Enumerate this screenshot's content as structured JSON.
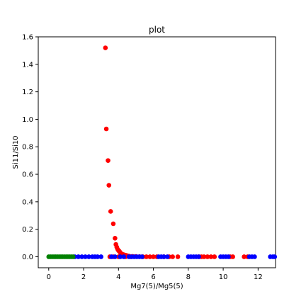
{
  "chart_data": {
    "type": "scatter",
    "title": "plot",
    "xlabel": "Mg7(5)/Mg5(5)",
    "ylabel": "Si11/Si10",
    "xlim": [
      -0.6,
      13.0
    ],
    "ylim": [
      -0.08,
      1.6
    ],
    "x_ticks": [
      0,
      2,
      4,
      6,
      8,
      10,
      12
    ],
    "y_ticks": [
      0.0,
      0.2,
      0.4,
      0.6,
      0.8,
      1.0,
      1.2,
      1.4,
      1.6
    ],
    "x_tick_labels": [
      "0",
      "2",
      "4",
      "6",
      "8",
      "10",
      "12"
    ],
    "y_tick_labels": [
      "0.0",
      "0.2",
      "0.4",
      "0.6",
      "0.8",
      "1.0",
      "1.2",
      "1.4",
      "1.6"
    ],
    "grid": false,
    "series": [
      {
        "color": "#ff0000",
        "points": [
          [
            3.25,
            1.52
          ],
          [
            3.3,
            0.93
          ],
          [
            3.4,
            0.7
          ],
          [
            3.45,
            0.52
          ],
          [
            3.55,
            0.33
          ],
          [
            3.7,
            0.24
          ],
          [
            3.8,
            0.135
          ],
          [
            3.85,
            0.09
          ],
          [
            3.9,
            0.07
          ],
          [
            3.95,
            0.055
          ],
          [
            4.0,
            0.045
          ],
          [
            4.05,
            0.04
          ],
          [
            4.1,
            0.03
          ],
          [
            4.2,
            0.02
          ],
          [
            4.3,
            0.015
          ],
          [
            4.4,
            0.012
          ],
          [
            4.5,
            0.008
          ],
          [
            4.6,
            0.005
          ],
          [
            4.8,
            0.003
          ],
          [
            5.0,
            0.002
          ],
          [
            5.2,
            0.001
          ],
          [
            3.5,
            0
          ],
          [
            3.7,
            0
          ],
          [
            4.0,
            0
          ],
          [
            4.4,
            0
          ],
          [
            4.7,
            0
          ],
          [
            5.4,
            0
          ],
          [
            5.6,
            0
          ],
          [
            5.8,
            0
          ],
          [
            6.0,
            0
          ],
          [
            6.2,
            0
          ],
          [
            6.6,
            0
          ],
          [
            6.9,
            0
          ],
          [
            7.1,
            0
          ],
          [
            7.4,
            0
          ],
          [
            8.6,
            0
          ],
          [
            8.75,
            0
          ],
          [
            8.9,
            0
          ],
          [
            9.1,
            0
          ],
          [
            9.3,
            0
          ],
          [
            9.5,
            0
          ],
          [
            10.4,
            0
          ],
          [
            10.55,
            0
          ],
          [
            11.2,
            0
          ],
          [
            11.4,
            0
          ]
        ]
      },
      {
        "color": "#0000ff",
        "points": [
          [
            1.5,
            0
          ],
          [
            1.7,
            0
          ],
          [
            1.9,
            0
          ],
          [
            2.1,
            0
          ],
          [
            2.3,
            0
          ],
          [
            2.5,
            0
          ],
          [
            2.65,
            0
          ],
          [
            2.8,
            0
          ],
          [
            3.0,
            0
          ],
          [
            3.6,
            0
          ],
          [
            3.8,
            0
          ],
          [
            4.1,
            0
          ],
          [
            4.3,
            0
          ],
          [
            4.6,
            0
          ],
          [
            4.75,
            0
          ],
          [
            4.9,
            0
          ],
          [
            5.05,
            0
          ],
          [
            5.2,
            0
          ],
          [
            5.35,
            0
          ],
          [
            6.3,
            0
          ],
          [
            6.45,
            0
          ],
          [
            6.6,
            0
          ],
          [
            6.8,
            0
          ],
          [
            8.0,
            0
          ],
          [
            8.15,
            0
          ],
          [
            8.3,
            0
          ],
          [
            8.45,
            0
          ],
          [
            8.6,
            0
          ],
          [
            9.85,
            0
          ],
          [
            10.0,
            0
          ],
          [
            10.15,
            0
          ],
          [
            10.3,
            0
          ],
          [
            11.5,
            0
          ],
          [
            11.65,
            0
          ],
          [
            11.8,
            0
          ],
          [
            12.7,
            0
          ],
          [
            12.85,
            0
          ],
          [
            12.95,
            0
          ]
        ]
      },
      {
        "color": "#008000",
        "points": [
          [
            0.0,
            0
          ],
          [
            0.1,
            0
          ],
          [
            0.2,
            0
          ],
          [
            0.3,
            0
          ],
          [
            0.4,
            0
          ],
          [
            0.5,
            0
          ],
          [
            0.6,
            0
          ],
          [
            0.7,
            0
          ],
          [
            0.8,
            0
          ],
          [
            0.9,
            0
          ],
          [
            1.0,
            0
          ],
          [
            1.1,
            0
          ],
          [
            1.2,
            0
          ],
          [
            1.3,
            0
          ],
          [
            1.4,
            0
          ]
        ]
      }
    ]
  }
}
